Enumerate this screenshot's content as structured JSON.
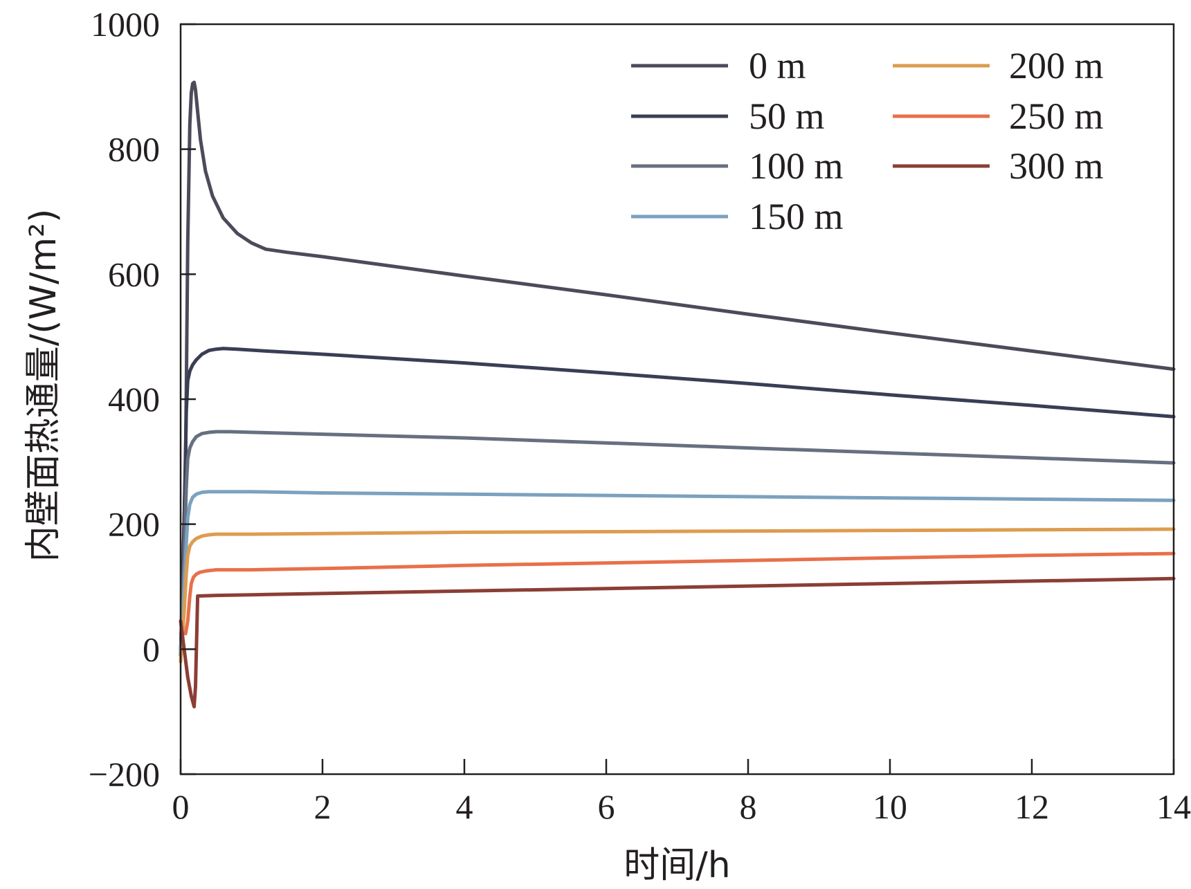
{
  "chart_data": {
    "type": "line",
    "xlabel": "时间/h",
    "ylabel": "内壁面热通量/(W/m²)",
    "xlim": [
      0,
      14
    ],
    "ylim": [
      -200,
      1000
    ],
    "xticks": [
      0,
      2,
      4,
      6,
      8,
      10,
      12,
      14
    ],
    "yticks": [
      -200,
      0,
      200,
      400,
      600,
      800,
      1000
    ],
    "x_tick_labels": [
      "0",
      "2",
      "4",
      "6",
      "8",
      "10",
      "12",
      "14"
    ],
    "y_tick_labels": [
      "−200",
      "0",
      "200",
      "400",
      "600",
      "800",
      "1000"
    ],
    "grid": false,
    "legend_position": "top-right",
    "series": [
      {
        "name": "0 m",
        "color": "#4b4b5a",
        "x": [
          0,
          0.07,
          0.1,
          0.13,
          0.15,
          0.17,
          0.19,
          0.21,
          0.24,
          0.28,
          0.35,
          0.45,
          0.6,
          0.8,
          1.0,
          1.2,
          1.5,
          2,
          4,
          6,
          8,
          10,
          12,
          14
        ],
        "y": [
          -10,
          300,
          650,
          840,
          890,
          905,
          907,
          895,
          860,
          815,
          765,
          725,
          690,
          665,
          650,
          640,
          635,
          628,
          597,
          567,
          536,
          506,
          477,
          448
        ]
      },
      {
        "name": "50 m",
        "color": "#3a3e55",
        "x": [
          0,
          0.05,
          0.08,
          0.1,
          0.13,
          0.17,
          0.22,
          0.3,
          0.4,
          0.5,
          0.6,
          0.8,
          1.2,
          2,
          4,
          6,
          8,
          10,
          12,
          14
        ],
        "y": [
          -10,
          200,
          380,
          430,
          445,
          455,
          463,
          472,
          478,
          480,
          481,
          480,
          477,
          472,
          458,
          442,
          425,
          407,
          390,
          372
        ]
      },
      {
        "name": "100 m",
        "color": "#676f80",
        "x": [
          0,
          0.05,
          0.08,
          0.1,
          0.13,
          0.17,
          0.22,
          0.3,
          0.4,
          0.5,
          0.7,
          1,
          2,
          4,
          6,
          8,
          10,
          12,
          14
        ],
        "y": [
          -10,
          150,
          260,
          305,
          322,
          332,
          340,
          345,
          347,
          348,
          348,
          347,
          344,
          338,
          330,
          322,
          314,
          306,
          298
        ]
      },
      {
        "name": "150 m",
        "color": "#7ba1bf",
        "x": [
          0,
          0.05,
          0.08,
          0.1,
          0.13,
          0.17,
          0.22,
          0.3,
          0.4,
          0.6,
          1,
          2,
          4,
          6,
          8,
          10,
          12,
          14
        ],
        "y": [
          -5,
          100,
          170,
          210,
          232,
          243,
          248,
          251,
          252,
          252,
          252,
          250,
          248,
          246,
          244,
          242,
          240,
          238
        ]
      },
      {
        "name": "200 m",
        "color": "#dd9c4f",
        "x": [
          0,
          0.05,
          0.08,
          0.1,
          0.13,
          0.17,
          0.22,
          0.3,
          0.4,
          0.5,
          0.7,
          1,
          2,
          4,
          6,
          8,
          10,
          12,
          14
        ],
        "y": [
          -20,
          60,
          120,
          150,
          165,
          172,
          177,
          181,
          183,
          184,
          184,
          184,
          185,
          187,
          188,
          189,
          190,
          191,
          192
        ]
      },
      {
        "name": "250 m",
        "color": "#e8704a",
        "x": [
          0,
          0.07,
          0.1,
          0.13,
          0.15,
          0.18,
          0.22,
          0.27,
          0.35,
          0.5,
          1,
          2,
          4,
          6,
          8,
          10,
          12,
          14
        ],
        "y": [
          25,
          25,
          45,
          85,
          105,
          115,
          120,
          123,
          125,
          127,
          127,
          129,
          134,
          138,
          142,
          146,
          150,
          153
        ]
      },
      {
        "name": "300 m",
        "color": "#8b3e35",
        "x": [
          0,
          0.05,
          0.1,
          0.15,
          0.19,
          0.21,
          0.24,
          0.5,
          1,
          2,
          4,
          6,
          8,
          10,
          12,
          14
        ],
        "y": [
          45,
          0,
          -45,
          -75,
          -92,
          -60,
          85,
          86,
          87,
          89,
          93,
          97,
          101,
          105,
          109,
          113
        ]
      }
    ]
  }
}
